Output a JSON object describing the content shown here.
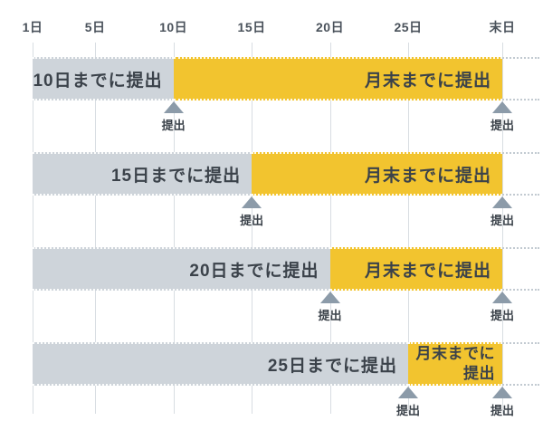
{
  "chart_data": {
    "type": "bar",
    "subtype": "horizontal-timeline-gantt",
    "title": "",
    "grid": true,
    "legend": null,
    "x_axis": {
      "unit": "day-of-month",
      "ticks": [
        {
          "label": "1日",
          "day": 1
        },
        {
          "label": "5日",
          "day": 5
        },
        {
          "label": "10日",
          "day": 10
        },
        {
          "label": "15日",
          "day": 15
        },
        {
          "label": "20日",
          "day": 20
        },
        {
          "label": "25日",
          "day": 25
        },
        {
          "label": "末日",
          "day": "eom"
        }
      ]
    },
    "rows": [
      {
        "segments": [
          {
            "lines": [
              "10日までに提出"
            ],
            "start": 1,
            "end": 10,
            "color": "gray"
          },
          {
            "lines": [
              "月末までに提出"
            ],
            "start": 10,
            "end": "eom",
            "color": "yellow"
          }
        ],
        "markers": [
          {
            "label": "提出",
            "at": 10
          },
          {
            "label": "提出",
            "at": "eom"
          }
        ]
      },
      {
        "segments": [
          {
            "lines": [
              "15日までに提出"
            ],
            "start": 1,
            "end": 15,
            "color": "gray"
          },
          {
            "lines": [
              "月末までに提出"
            ],
            "start": 15,
            "end": "eom",
            "color": "yellow"
          }
        ],
        "markers": [
          {
            "label": "提出",
            "at": 15
          },
          {
            "label": "提出",
            "at": "eom"
          }
        ]
      },
      {
        "segments": [
          {
            "lines": [
              "20日までに提出"
            ],
            "start": 1,
            "end": 20,
            "color": "gray"
          },
          {
            "lines": [
              "月末までに提出"
            ],
            "start": 20,
            "end": "eom",
            "color": "yellow"
          }
        ],
        "markers": [
          {
            "label": "提出",
            "at": 20
          },
          {
            "label": "提出",
            "at": "eom"
          }
        ]
      },
      {
        "segments": [
          {
            "lines": [
              "25日までに提出"
            ],
            "start": 1,
            "end": 25,
            "color": "gray"
          },
          {
            "lines": [
              "月末までに",
              "提出"
            ],
            "start": 25,
            "end": "eom",
            "color": "yellow"
          }
        ],
        "markers": [
          {
            "label": "提出",
            "at": 25
          },
          {
            "label": "提出",
            "at": "eom"
          }
        ]
      }
    ],
    "colors": {
      "gray_bar": "#ced4da",
      "yellow_bar": "#f2c42f",
      "marker_triangle": "#8c9ba9",
      "bar_text": "#3b424a",
      "axis_text": "#4a525b",
      "gridline": "#d8dde2",
      "dotted_line": "#c2cad1",
      "background": "#ffffff"
    }
  }
}
